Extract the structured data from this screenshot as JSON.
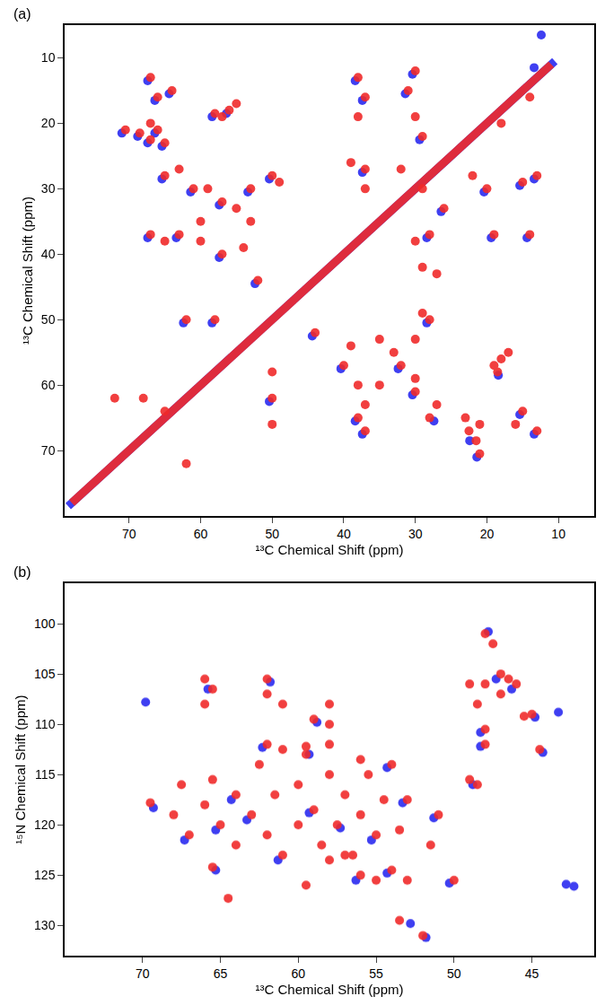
{
  "chart_data": [
    {
      "type": "scatter",
      "label": "(a)",
      "x_label": "¹³C Chemical Shift (ppm)",
      "y_label": "¹³C Chemical Shift (ppm)",
      "xlim": [
        79,
        5
      ],
      "ylim": [
        80,
        5
      ],
      "xticks": [
        70,
        60,
        50,
        40,
        30,
        20,
        10
      ],
      "yticks": [
        10,
        20,
        30,
        40,
        50,
        60,
        70
      ],
      "grid": false,
      "series": [
        {
          "type": "line",
          "color": "#2a2af0",
          "line_style": "solid",
          "x": [
            78.5,
            10.5
          ],
          "y": [
            78.5,
            10.5
          ]
        },
        {
          "type": "scatter",
          "color": "#2a2af0",
          "marker": "circle",
          "x": [
            71,
            68.8,
            67.4,
            66.4,
            65.4,
            67.4,
            66.4,
            64.4,
            58.4,
            56.4,
            65.4,
            61.4,
            57.4,
            53.4,
            50.4,
            67.4,
            63.4,
            57.4,
            52.4,
            62.4,
            58.4,
            38.4,
            37.4,
            37.4,
            30.4,
            31.4,
            29.4,
            28.4,
            26.4,
            20.4,
            15.4,
            13.4,
            19.4,
            14.4,
            21.4,
            22.4,
            13.4,
            15.4,
            18.4,
            27.4,
            30.4,
            32.4,
            28.4,
            37.4,
            38.4,
            40.4,
            44.4,
            50.4,
            12.4,
            13.4
          ],
          "y": [
            21.5,
            22,
            23,
            21.5,
            23.5,
            13.5,
            16.5,
            15.5,
            19,
            18.5,
            28.5,
            30.5,
            32.5,
            30.5,
            28.5,
            37.5,
            37.5,
            40.5,
            44.5,
            50.5,
            50.5,
            13.5,
            16.5,
            27.5,
            12.5,
            15.5,
            22.5,
            37.5,
            33.5,
            30.5,
            29.5,
            28.5,
            37.5,
            37.5,
            71,
            68.5,
            67.5,
            64.5,
            58.5,
            65.5,
            61.5,
            57.5,
            50.5,
            67.5,
            65.5,
            57.5,
            52.5,
            62.5,
            6.5,
            11.5
          ]
        },
        {
          "type": "line",
          "color": "#f02a2a",
          "line_style": "solid",
          "x": [
            78,
            11
          ],
          "y": [
            78,
            11
          ]
        },
        {
          "type": "scatter",
          "color": "#f02a2a",
          "marker": "circle",
          "x": [
            70.5,
            68.5,
            67,
            66,
            65,
            67,
            67,
            66,
            64,
            58,
            56,
            55,
            57,
            65,
            63,
            61,
            59,
            57,
            55,
            53,
            50,
            49,
            53,
            60,
            67,
            65,
            63,
            60,
            57,
            54,
            52,
            62,
            58,
            50,
            72,
            62,
            68,
            65,
            38,
            37,
            38,
            37,
            37,
            39,
            30,
            31,
            30,
            29,
            32,
            29,
            30,
            28,
            26,
            29,
            27,
            22,
            20,
            15,
            13,
            19,
            14,
            18,
            14,
            21,
            21.5,
            22.5,
            21,
            23,
            13,
            16,
            15,
            18.5,
            18,
            17,
            19,
            28,
            27,
            30,
            30,
            32,
            33,
            30,
            28,
            29,
            35,
            35,
            37,
            38,
            37,
            38,
            40,
            39,
            44,
            50,
            50
          ],
          "y": [
            21,
            21.5,
            22.5,
            21,
            23,
            20,
            13,
            16,
            15,
            18.5,
            18,
            17,
            19,
            28,
            27,
            30,
            30,
            32,
            33,
            30,
            28,
            29,
            35,
            35,
            37,
            38,
            37,
            38,
            40,
            39,
            44,
            50,
            50,
            66,
            62,
            72,
            62,
            64,
            13,
            16,
            19,
            27,
            30,
            26,
            12,
            15,
            19,
            22,
            27,
            30,
            38,
            37,
            33,
            42,
            43,
            28,
            30,
            29,
            28,
            37,
            37,
            20,
            16,
            70.5,
            68.5,
            67,
            66,
            65,
            67,
            66,
            64,
            58,
            56,
            55,
            57,
            65,
            63,
            61,
            59,
            57,
            55,
            53,
            50,
            49,
            53,
            60,
            67,
            65,
            63,
            60,
            57,
            54,
            52,
            62,
            58
          ]
        }
      ]
    },
    {
      "type": "scatter",
      "label": "(b)",
      "x_label": "¹³C Chemical Shift (ppm)",
      "y_label": "¹⁵N Chemical Shift (ppm)",
      "xlim": [
        75,
        41
      ],
      "ylim": [
        133,
        96
      ],
      "xticks": [
        70,
        65,
        60,
        55,
        50,
        45
      ],
      "yticks": [
        100,
        105,
        110,
        115,
        120,
        125,
        130
      ],
      "grid": false,
      "series": [
        {
          "type": "scatter",
          "color": "#2a2af0",
          "marker": "circle",
          "x": [
            69.3,
            67.3,
            65.3,
            63.3,
            61.3,
            59.3,
            57.3,
            55.3,
            53.3,
            64.3,
            59.3,
            54.3,
            52.8,
            51.8,
            50.3,
            65.8,
            61.8,
            58.8,
            69.8,
            47.8,
            47.3,
            48.3,
            46.3,
            48.3,
            44.8,
            44.3,
            43.3,
            42.3,
            42.8,
            54.3,
            56.3,
            62.3,
            51.3,
            65.3,
            48.8
          ],
          "y": [
            118.3,
            121.5,
            120.5,
            119.5,
            123.5,
            118.8,
            120.3,
            121.5,
            117.8,
            117.5,
            113,
            124.8,
            129.8,
            131.2,
            125.8,
            106.5,
            105.8,
            109.8,
            107.8,
            100.8,
            105.5,
            112.2,
            106.5,
            110.8,
            109.3,
            112.8,
            108.8,
            126.1,
            125.9,
            114.3,
            125.5,
            112.3,
            119.3,
            124.5,
            116
          ]
        },
        {
          "type": "scatter",
          "color": "#f02a2a",
          "marker": "circle",
          "x": [
            69.5,
            68,
            67.5,
            67,
            66,
            65.5,
            65,
            64,
            64,
            63,
            62.5,
            62,
            61.5,
            61,
            60,
            60,
            59.5,
            59,
            58.5,
            58,
            57.5,
            57,
            56.5,
            56,
            55.5,
            55,
            54.5,
            54,
            55,
            56,
            53.5,
            53,
            57,
            58,
            62,
            61,
            59.5,
            58,
            56,
            54,
            65.5,
            64.5,
            59.5,
            53,
            53.5,
            52,
            51.5,
            51,
            50,
            66,
            65.5,
            66,
            62,
            62,
            61,
            59,
            58,
            58,
            48,
            47.5,
            48,
            47,
            46,
            49,
            48.5,
            48,
            48,
            49,
            48.5,
            45,
            45.5,
            44.5,
            47,
            46.5
          ],
          "y": [
            117.8,
            119,
            116,
            121,
            118,
            115.5,
            120,
            117,
            122,
            119,
            114,
            121,
            117,
            123,
            116,
            120,
            113,
            118.5,
            122,
            115,
            120,
            117,
            123,
            119,
            115,
            121,
            117.5,
            124.5,
            125.5,
            125,
            120.5,
            117.5,
            123,
            123.5,
            112,
            112.5,
            112.2,
            112,
            113.5,
            114,
            124.2,
            127.3,
            126,
            125.5,
            129.5,
            131,
            122,
            119,
            125.5,
            105.5,
            106.5,
            108,
            105.5,
            107,
            108,
            109.5,
            110,
            108,
            101,
            102,
            106,
            105,
            106,
            106,
            108,
            112,
            110.5,
            115.5,
            116,
            109,
            109.2,
            112.5,
            107,
            105.5
          ]
        }
      ]
    }
  ]
}
